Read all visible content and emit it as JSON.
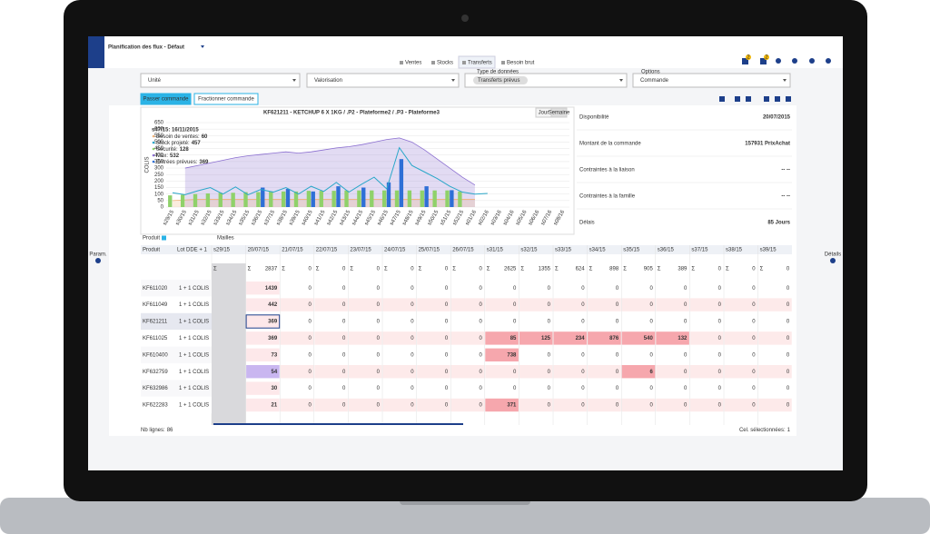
{
  "app": {
    "title": "Planification des flux - Défaut",
    "badges": [
      2,
      2
    ]
  },
  "tabs": [
    "Ventes",
    "Stocks",
    "Transferts",
    "Besoin brut"
  ],
  "filters": {
    "unit": "Unité",
    "valuation": "Valorisation",
    "data_type_label": "Type de données",
    "data_type_chip": "Transferts prévus",
    "options_label": "Options",
    "options_value": "Commande"
  },
  "buttons": [
    "Passer commande",
    "Fractionner commande"
  ],
  "chart_data": {
    "type": "combo",
    "title": "KF621211 - KETCHUP 6 X 1KG / .P2 - Plateforme2 / .P3 - Plateforme3",
    "toggles": [
      "Jour",
      "Semaine"
    ],
    "y_label": "COLIS",
    "categories": [
      "s29/15",
      "s30/15",
      "s31/15",
      "s32/15",
      "s33/15",
      "s34/15",
      "s35/15",
      "s36/15",
      "s37/15",
      "s38/15",
      "s39/15",
      "s40/15",
      "s41/15",
      "s42/15",
      "s43/15",
      "s44/15",
      "s45/15",
      "s46/15",
      "s47/15",
      "s48/15",
      "s49/15",
      "s50/15",
      "s51/15",
      "s52/15",
      "s01/16",
      "s02/16",
      "s03/16",
      "s04/16",
      "s05/16",
      "s06/16",
      "s07/16",
      "s08/16"
    ],
    "ylim": [
      0,
      650
    ],
    "yticks": [
      0,
      50,
      100,
      150,
      200,
      250,
      300,
      350,
      400,
      450,
      500,
      550,
      600,
      650
    ],
    "grid": true,
    "series": [
      {
        "name": "Max",
        "type": "area",
        "color": "#8b6fd0",
        "values": [
          null,
          300,
          320,
          340,
          360,
          380,
          395,
          405,
          415,
          425,
          415,
          425,
          440,
          455,
          465,
          480,
          500,
          520,
          532,
          500,
          440,
          370,
          300,
          230,
          170,
          null,
          null,
          null,
          null,
          null,
          null,
          null
        ]
      },
      {
        "name": "Besoin de ventes",
        "type": "area",
        "color": "#f0b27a",
        "values": [
          50,
          55,
          60,
          60,
          60,
          60,
          60,
          60,
          60,
          60,
          60,
          60,
          60,
          60,
          60,
          60,
          60,
          60,
          60,
          60,
          60,
          60,
          60,
          60,
          60,
          null,
          null,
          null,
          null,
          null,
          null,
          null
        ]
      },
      {
        "name": "Sécurité",
        "type": "bar",
        "color": "#8fd16a",
        "values": [
          90,
          95,
          100,
          105,
          110,
          110,
          115,
          115,
          120,
          120,
          120,
          125,
          125,
          125,
          128,
          128,
          128,
          128,
          128,
          128,
          128,
          128,
          128,
          120,
          null,
          null,
          null,
          null,
          null,
          null,
          null,
          null
        ]
      },
      {
        "name": "Entrées prévues",
        "type": "bar",
        "color": "#2e6fd6",
        "values": [
          null,
          null,
          null,
          null,
          null,
          null,
          null,
          150,
          null,
          140,
          null,
          120,
          null,
          160,
          null,
          150,
          null,
          190,
          369,
          null,
          160,
          null,
          130,
          null,
          null,
          null,
          null,
          null,
          null,
          null,
          null,
          null
        ]
      },
      {
        "name": "Stock projeté",
        "type": "line",
        "color": "#2aa7c9",
        "values": [
          110,
          95,
          125,
          150,
          100,
          155,
          95,
          135,
          115,
          150,
          100,
          160,
          120,
          190,
          115,
          175,
          230,
          140,
          457,
          320,
          270,
          220,
          160,
          115,
          100,
          105,
          null,
          null,
          null,
          null,
          null,
          null
        ]
      }
    ],
    "tooltip": {
      "title": "s47/15: 16/11/2015",
      "items": [
        {
          "label": "Besoin de ventes:",
          "value": 60
        },
        {
          "label": "Stock projeté:",
          "value": 457
        },
        {
          "label": "Sécurité:",
          "value": 128
        },
        {
          "label": "Max:",
          "value": 532
        },
        {
          "label": "Entrées prévues:",
          "value": 369
        }
      ]
    }
  },
  "details": [
    {
      "label": "Disponibilité",
      "value": "20/07/2015"
    },
    {
      "label": "Montant de la commande",
      "value": "157931 PrixAchat"
    },
    {
      "label": "Contraintes à la liaison",
      "value": "-- --"
    },
    {
      "label": "Contraintes à la famille",
      "value": "-- --"
    },
    {
      "label": "Délais",
      "value": "85 Jours"
    }
  ],
  "table": {
    "toolbar": [
      "Produit",
      "Mailles"
    ],
    "headers": [
      "Produit",
      "Lot DDE + 1",
      "s29/15",
      "20/07/15",
      "21/07/15",
      "22/07/15",
      "23/07/15",
      "24/07/15",
      "25/07/15",
      "26/07/15",
      "s31/15",
      "s32/15",
      "s33/15",
      "s34/15",
      "s35/15",
      "s36/15",
      "s37/15",
      "s38/15",
      "s39/15"
    ],
    "sum_symbol": "Σ",
    "sums": [
      2837,
      0,
      0,
      0,
      0,
      0,
      0,
      2625,
      1355,
      624,
      898,
      905,
      389,
      0,
      0,
      0
    ],
    "rows": [
      {
        "product": "KF611020",
        "lot": "1 + 1 COLIS",
        "values": [
          1439,
          0,
          0,
          0,
          0,
          0,
          0,
          0,
          0,
          0,
          0,
          0,
          0,
          0,
          0,
          0
        ]
      },
      {
        "product": "KF611049",
        "lot": "1 + 1 COLIS",
        "values": [
          442,
          0,
          0,
          0,
          0,
          0,
          0,
          0,
          0,
          0,
          0,
          0,
          0,
          0,
          0,
          0
        ]
      },
      {
        "product": "KF621211",
        "lot": "1 + 1 COLIS",
        "values": [
          369,
          0,
          0,
          0,
          0,
          0,
          0,
          0,
          0,
          0,
          0,
          0,
          0,
          0,
          0,
          0
        ]
      },
      {
        "product": "KF611025",
        "lot": "1 + 1 COLIS",
        "values": [
          369,
          0,
          0,
          0,
          0,
          0,
          0,
          85,
          125,
          234,
          876,
          540,
          132,
          0,
          0,
          0
        ]
      },
      {
        "product": "KF610400",
        "lot": "1 + 1 COLIS",
        "values": [
          73,
          0,
          0,
          0,
          0,
          0,
          0,
          738,
          0,
          0,
          0,
          0,
          0,
          0,
          0,
          0
        ]
      },
      {
        "product": "KF632759",
        "lot": "1 + 1 COLIS",
        "values": [
          54,
          0,
          0,
          0,
          0,
          0,
          0,
          0,
          0,
          0,
          0,
          6,
          0,
          0,
          0,
          0
        ]
      },
      {
        "product": "KF632986",
        "lot": "1 + 1 COLIS",
        "values": [
          30,
          0,
          0,
          0,
          0,
          0,
          0,
          0,
          0,
          0,
          0,
          0,
          0,
          0,
          0,
          0
        ]
      },
      {
        "product": "KF622283",
        "lot": "1 + 1 COLIS",
        "values": [
          21,
          0,
          0,
          0,
          0,
          0,
          0,
          371,
          0,
          0,
          0,
          0,
          0,
          0,
          0,
          0
        ]
      }
    ],
    "footer": {
      "rows_label": "Nb lignes:",
      "rows_count": 86,
      "selected_label": "Cel. sélectionnées:",
      "selected_count": 1
    }
  },
  "side": {
    "left": "Param.",
    "right": "Détails"
  }
}
